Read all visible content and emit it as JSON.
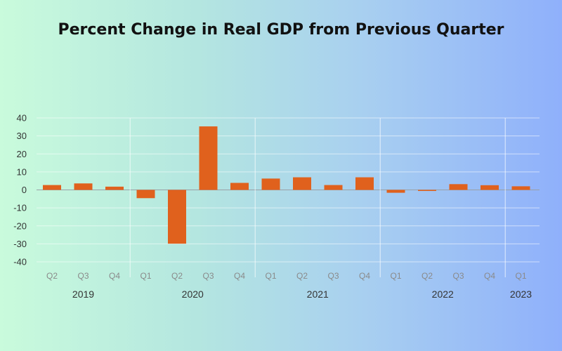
{
  "chart_data": {
    "type": "bar",
    "title": "Percent Change in Real GDP from Previous Quarter",
    "categories": [
      "Q2",
      "Q3",
      "Q4",
      "Q1",
      "Q2",
      "Q3",
      "Q4",
      "Q1",
      "Q2",
      "Q3",
      "Q4",
      "Q1",
      "Q2",
      "Q3",
      "Q4",
      "Q1"
    ],
    "years": [
      {
        "label": "2019",
        "from": 0,
        "to": 2
      },
      {
        "label": "2020",
        "from": 3,
        "to": 6
      },
      {
        "label": "2021",
        "from": 7,
        "to": 10
      },
      {
        "label": "2022",
        "from": 11,
        "to": 14
      },
      {
        "label": "2023",
        "from": 15,
        "to": 15
      }
    ],
    "values": [
      2.7,
      3.6,
      1.8,
      -4.6,
      -29.9,
      35.3,
      3.9,
      6.3,
      7.0,
      2.7,
      7.0,
      -1.6,
      -0.6,
      3.2,
      2.6,
      2.0
    ],
    "ylim": [
      -40,
      40
    ],
    "yticks": [
      40,
      30,
      20,
      10,
      0,
      -10,
      -20,
      -30,
      -40
    ],
    "bar_color": "#e0611d",
    "grid": true
  }
}
